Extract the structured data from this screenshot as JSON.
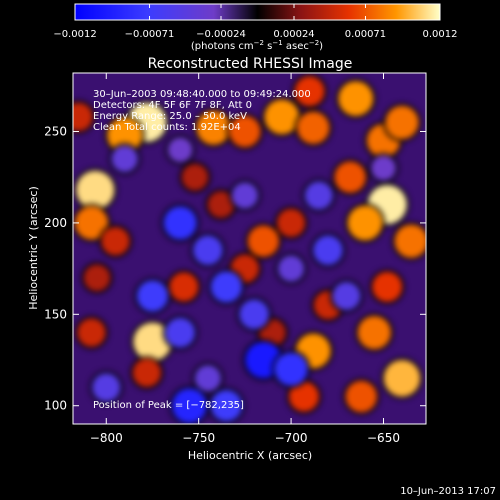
{
  "chart_data": {
    "type": "heatmap",
    "title": "Reconstructed RHESSI Image",
    "xlabel": "Heliocentric X (arcsec)",
    "ylabel": "Heliocentric Y (arcsec)",
    "xlim": [
      -818,
      -627
    ],
    "ylim": [
      90,
      282
    ],
    "x_ticks": [
      -800,
      -750,
      -700,
      -650
    ],
    "y_ticks": [
      100,
      150,
      200,
      250
    ],
    "x_tick_labels": [
      "−800",
      "−750",
      "−700",
      "−650"
    ],
    "y_tick_labels": [
      "100",
      "150",
      "200",
      "250"
    ],
    "colorbar": {
      "range": [
        -0.0012,
        0.0012
      ],
      "ticks": [
        -0.0012,
        -0.00071,
        -0.00024,
        0.00024,
        0.00071,
        0.0012
      ],
      "tick_labels": [
        "−0.0012",
        "−0.00071",
        "−0.00024",
        "0.00024",
        "0.00071",
        "0.0012"
      ],
      "units_base": "(photons cm",
      "units_exp1": "−2",
      "units_mid": " s",
      "units_exp2": "−1",
      "units_mid2": " asec",
      "units_exp3": "−2",
      "units_end": ")"
    },
    "annotations": {
      "time_range": "30–Jun–2003 09:48:40.000 to 09:49:24.000",
      "detectors": "Detectors: 4F 5F 6F 7F 8F, Att 0",
      "energy": "Energy Range: 25.0 – 50.0 keV",
      "method": "Clean   Total counts: 1.92E+04",
      "peak": "Position of Peak = [−782,235]"
    },
    "blobs": [
      {
        "x": -778,
        "y": 255,
        "v": 0.00115
      },
      {
        "x": -790,
        "y": 248,
        "v": 0.0009
      },
      {
        "x": -806,
        "y": 218,
        "v": 0.0011
      },
      {
        "x": -808,
        "y": 200,
        "v": 0.0008
      },
      {
        "x": -795,
        "y": 190,
        "v": 0.0005
      },
      {
        "x": -742,
        "y": 252,
        "v": 0.00085
      },
      {
        "x": -725,
        "y": 250,
        "v": 0.0007
      },
      {
        "x": -705,
        "y": 258,
        "v": 0.0009
      },
      {
        "x": -688,
        "y": 252,
        "v": 0.00075
      },
      {
        "x": -665,
        "y": 268,
        "v": 0.0009
      },
      {
        "x": -650,
        "y": 245,
        "v": 0.0008
      },
      {
        "x": -668,
        "y": 225,
        "v": 0.0007
      },
      {
        "x": -640,
        "y": 255,
        "v": 0.0008
      },
      {
        "x": -648,
        "y": 210,
        "v": 0.00115
      },
      {
        "x": -660,
        "y": 200,
        "v": 0.0009
      },
      {
        "x": -635,
        "y": 190,
        "v": 0.0008
      },
      {
        "x": -648,
        "y": 165,
        "v": 0.0006
      },
      {
        "x": -655,
        "y": 140,
        "v": 0.0008
      },
      {
        "x": -640,
        "y": 115,
        "v": 0.001
      },
      {
        "x": -662,
        "y": 105,
        "v": 0.0007
      },
      {
        "x": -688,
        "y": 130,
        "v": 0.0009
      },
      {
        "x": -693,
        "y": 105,
        "v": 0.0006
      },
      {
        "x": -680,
        "y": 155,
        "v": 0.0005
      },
      {
        "x": -715,
        "y": 190,
        "v": 0.0007
      },
      {
        "x": -700,
        "y": 200,
        "v": 0.0005
      },
      {
        "x": -725,
        "y": 175,
        "v": 0.0005
      },
      {
        "x": -738,
        "y": 210,
        "v": 0.0004
      },
      {
        "x": -752,
        "y": 225,
        "v": 0.0004
      },
      {
        "x": -758,
        "y": 165,
        "v": 0.00055
      },
      {
        "x": -775,
        "y": 135,
        "v": 0.0011
      },
      {
        "x": -778,
        "y": 118,
        "v": 0.0005
      },
      {
        "x": -808,
        "y": 140,
        "v": 0.0005
      },
      {
        "x": -805,
        "y": 170,
        "v": 0.0004
      },
      {
        "x": -815,
        "y": 258,
        "v": 0.0005
      },
      {
        "x": -690,
        "y": 272,
        "v": 0.0006
      },
      {
        "x": -710,
        "y": 140,
        "v": 0.0004
      },
      {
        "x": -745,
        "y": 115,
        "v": -0.0004
      },
      {
        "x": -755,
        "y": 100,
        "v": -0.0009
      },
      {
        "x": -735,
        "y": 100,
        "v": -0.0007
      },
      {
        "x": -775,
        "y": 160,
        "v": -0.0007
      },
      {
        "x": -760,
        "y": 140,
        "v": -0.0006
      },
      {
        "x": -735,
        "y": 165,
        "v": -0.0007
      },
      {
        "x": -715,
        "y": 125,
        "v": -0.001
      },
      {
        "x": -700,
        "y": 120,
        "v": -0.0008
      },
      {
        "x": -720,
        "y": 150,
        "v": -0.0006
      },
      {
        "x": -760,
        "y": 200,
        "v": -0.0008
      },
      {
        "x": -745,
        "y": 185,
        "v": -0.0006
      },
      {
        "x": -725,
        "y": 215,
        "v": -0.0004
      },
      {
        "x": -700,
        "y": 175,
        "v": -0.0004
      },
      {
        "x": -680,
        "y": 185,
        "v": -0.0006
      },
      {
        "x": -685,
        "y": 215,
        "v": -0.0005
      },
      {
        "x": -670,
        "y": 160,
        "v": -0.0005
      },
      {
        "x": -800,
        "y": 110,
        "v": -0.0005
      },
      {
        "x": -790,
        "y": 235,
        "v": -0.0004
      },
      {
        "x": -760,
        "y": 240,
        "v": -0.0003
      },
      {
        "x": -650,
        "y": 230,
        "v": -0.0003
      }
    ]
  },
  "footer": {
    "timestamp": "10–Jun–2013 17:07"
  }
}
